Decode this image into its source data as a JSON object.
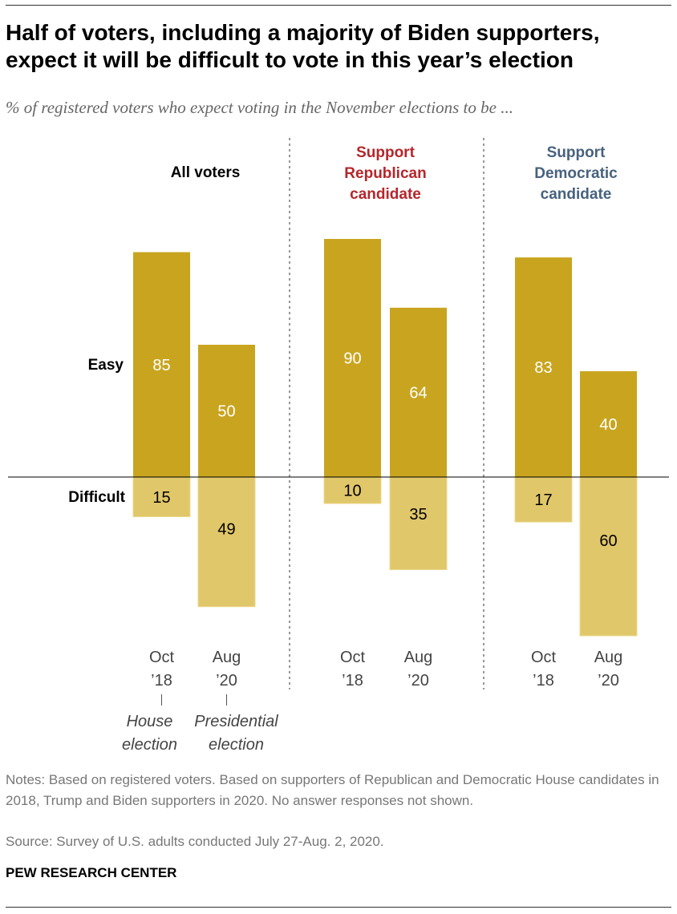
{
  "title": "Half of voters, including a majority of Biden supporters, expect it will be difficult to vote in this year’s election",
  "subtitle": "% of registered voters who expect voting in the November elections to be ...",
  "notes": "Notes: Based on registered voters. Based on supporters of Republican and Democratic House candidates in 2018, Trump and Biden supporters in 2020. No answer responses not shown.",
  "source": "Source: Survey of U.S. adults conducted July 27-Aug. 2, 2020.",
  "brand": "PEW RESEARCH CENTER",
  "chart_data": {
    "type": "bar",
    "row_labels": {
      "easy": "Easy",
      "difficult": "Difficult"
    },
    "colors": {
      "easy": "#c9a51f",
      "difficult": "#e0c76a",
      "republican": "#b5262b",
      "democratic": "#47627e",
      "all": "#000000"
    },
    "period_labels": [
      [
        "Oct",
        "’18"
      ],
      [
        "Aug",
        "’20"
      ]
    ],
    "period_annotations": [
      [
        "House",
        "election"
      ],
      [
        "Presidential",
        "election"
      ]
    ],
    "groups": [
      {
        "title": [
          "All voters"
        ],
        "color_key": "all",
        "easy": [
          85,
          50
        ],
        "difficult": [
          15,
          49
        ]
      },
      {
        "title": [
          "Support",
          "Republican",
          "candidate"
        ],
        "color_key": "republican",
        "easy": [
          90,
          64
        ],
        "difficult": [
          10,
          35
        ]
      },
      {
        "title": [
          "Support",
          "Democratic",
          "candidate"
        ],
        "color_key": "democratic",
        "easy": [
          83,
          40
        ],
        "difficult": [
          17,
          60
        ]
      }
    ]
  }
}
